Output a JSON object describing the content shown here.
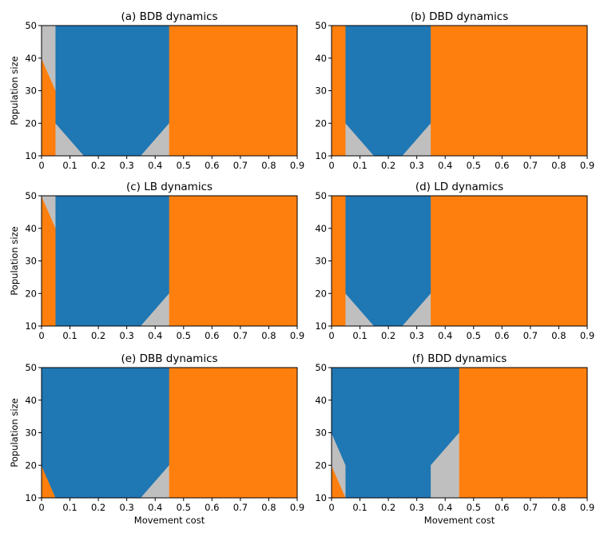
{
  "colors": {
    "blue": "#1f77b4",
    "orange": "#ff7f0e",
    "gray": "#bfbfbf"
  },
  "chart_data": [
    {
      "type": "heatmap",
      "title": "(a) BDB dynamics",
      "xlabel": "",
      "ylabel": "Population size",
      "xlim": [
        0,
        0.9
      ],
      "ylim": [
        10,
        50
      ],
      "xticks": [
        "0",
        "0.1",
        "0.2",
        "0.3",
        "0.4",
        "0.5",
        "0.6",
        "0.7",
        "0.8",
        "0.9"
      ],
      "yticks": [
        "10",
        "20",
        "30",
        "40",
        "50"
      ],
      "regions": [
        {
          "color": "orange",
          "points": [
            [
              0,
              10
            ],
            [
              0.05,
              10
            ],
            [
              0.05,
              30
            ],
            [
              0,
              40
            ]
          ]
        },
        {
          "color": "gray",
          "points": [
            [
              0,
              40
            ],
            [
              0.05,
              30
            ],
            [
              0.05,
              50
            ],
            [
              0,
              50
            ]
          ]
        },
        {
          "color": "gray",
          "points": [
            [
              0.05,
              10
            ],
            [
              0.15,
              10
            ],
            [
              0.05,
              20
            ]
          ]
        },
        {
          "color": "blue",
          "points": [
            [
              0.05,
              20
            ],
            [
              0.15,
              10
            ],
            [
              0.35,
              10
            ],
            [
              0.45,
              20
            ],
            [
              0.45,
              50
            ],
            [
              0.05,
              50
            ]
          ]
        },
        {
          "color": "gray",
          "points": [
            [
              0.35,
              10
            ],
            [
              0.45,
              10
            ],
            [
              0.45,
              20
            ]
          ]
        },
        {
          "color": "orange",
          "points": [
            [
              0.45,
              10
            ],
            [
              0.9,
              10
            ],
            [
              0.9,
              50
            ],
            [
              0.45,
              50
            ]
          ]
        }
      ]
    },
    {
      "type": "heatmap",
      "title": "(b) DBD dynamics",
      "xlabel": "",
      "ylabel": "",
      "xlim": [
        0,
        0.9
      ],
      "ylim": [
        10,
        50
      ],
      "xticks": [
        "0",
        "0.1",
        "0.2",
        "0.3",
        "0.4",
        "0.5",
        "0.6",
        "0.7",
        "0.8",
        "0.9"
      ],
      "yticks": [
        "10",
        "20",
        "30",
        "40",
        "50"
      ],
      "regions": [
        {
          "color": "orange",
          "points": [
            [
              0,
              10
            ],
            [
              0.05,
              10
            ],
            [
              0.05,
              50
            ],
            [
              0,
              50
            ]
          ]
        },
        {
          "color": "gray",
          "points": [
            [
              0.05,
              10
            ],
            [
              0.15,
              10
            ],
            [
              0.05,
              20
            ]
          ]
        },
        {
          "color": "blue",
          "points": [
            [
              0.05,
              20
            ],
            [
              0.15,
              10
            ],
            [
              0.25,
              10
            ],
            [
              0.35,
              20
            ],
            [
              0.35,
              50
            ],
            [
              0.05,
              50
            ]
          ]
        },
        {
          "color": "gray",
          "points": [
            [
              0.25,
              10
            ],
            [
              0.35,
              10
            ],
            [
              0.35,
              20
            ]
          ]
        },
        {
          "color": "orange",
          "points": [
            [
              0.35,
              10
            ],
            [
              0.9,
              10
            ],
            [
              0.9,
              50
            ],
            [
              0.35,
              50
            ]
          ]
        }
      ]
    },
    {
      "type": "heatmap",
      "title": "(c) LB dynamics",
      "xlabel": "",
      "ylabel": "Population size",
      "xlim": [
        0,
        0.9
      ],
      "ylim": [
        10,
        50
      ],
      "xticks": [
        "0",
        "0.1",
        "0.2",
        "0.3",
        "0.4",
        "0.5",
        "0.6",
        "0.7",
        "0.8",
        "0.9"
      ],
      "yticks": [
        "10",
        "20",
        "30",
        "40",
        "50"
      ],
      "regions": [
        {
          "color": "orange",
          "points": [
            [
              0,
              10
            ],
            [
              0.05,
              10
            ],
            [
              0.05,
              40
            ],
            [
              0,
              50
            ]
          ]
        },
        {
          "color": "gray",
          "points": [
            [
              0,
              50
            ],
            [
              0.05,
              40
            ],
            [
              0.05,
              50
            ]
          ]
        },
        {
          "color": "blue",
          "points": [
            [
              0.05,
              10
            ],
            [
              0.35,
              10
            ],
            [
              0.45,
              20
            ],
            [
              0.45,
              50
            ],
            [
              0.05,
              50
            ]
          ]
        },
        {
          "color": "gray",
          "points": [
            [
              0.35,
              10
            ],
            [
              0.45,
              10
            ],
            [
              0.45,
              20
            ]
          ]
        },
        {
          "color": "orange",
          "points": [
            [
              0.45,
              10
            ],
            [
              0.9,
              10
            ],
            [
              0.9,
              50
            ],
            [
              0.45,
              50
            ]
          ]
        }
      ]
    },
    {
      "type": "heatmap",
      "title": "(d) LD dynamics",
      "xlabel": "",
      "ylabel": "",
      "xlim": [
        0,
        0.9
      ],
      "ylim": [
        10,
        50
      ],
      "xticks": [
        "0",
        "0.1",
        "0.2",
        "0.3",
        "0.4",
        "0.5",
        "0.6",
        "0.7",
        "0.8",
        "0.9"
      ],
      "yticks": [
        "10",
        "20",
        "30",
        "40",
        "50"
      ],
      "regions": [
        {
          "color": "orange",
          "points": [
            [
              0,
              10
            ],
            [
              0.05,
              10
            ],
            [
              0.05,
              50
            ],
            [
              0,
              50
            ]
          ]
        },
        {
          "color": "gray",
          "points": [
            [
              0.05,
              10
            ],
            [
              0.15,
              10
            ],
            [
              0.05,
              20
            ]
          ]
        },
        {
          "color": "blue",
          "points": [
            [
              0.05,
              20
            ],
            [
              0.15,
              10
            ],
            [
              0.25,
              10
            ],
            [
              0.35,
              20
            ],
            [
              0.35,
              50
            ],
            [
              0.05,
              50
            ]
          ]
        },
        {
          "color": "gray",
          "points": [
            [
              0.25,
              10
            ],
            [
              0.35,
              10
            ],
            [
              0.35,
              20
            ]
          ]
        },
        {
          "color": "orange",
          "points": [
            [
              0.35,
              10
            ],
            [
              0.9,
              10
            ],
            [
              0.9,
              50
            ],
            [
              0.35,
              50
            ]
          ]
        }
      ]
    },
    {
      "type": "heatmap",
      "title": "(e) DBB dynamics",
      "xlabel": "Movement cost",
      "ylabel": "Population size",
      "xlim": [
        0,
        0.9
      ],
      "ylim": [
        10,
        50
      ],
      "xticks": [
        "0",
        "0.1",
        "0.2",
        "0.3",
        "0.4",
        "0.5",
        "0.6",
        "0.7",
        "0.8",
        "0.9"
      ],
      "yticks": [
        "10",
        "20",
        "30",
        "40",
        "50"
      ],
      "regions": [
        {
          "color": "orange",
          "points": [
            [
              0,
              10
            ],
            [
              0.05,
              10
            ],
            [
              0,
              20
            ]
          ]
        },
        {
          "color": "blue",
          "points": [
            [
              0,
              20
            ],
            [
              0.05,
              10
            ],
            [
              0.35,
              10
            ],
            [
              0.45,
              20
            ],
            [
              0.45,
              50
            ],
            [
              0,
              50
            ]
          ]
        },
        {
          "color": "gray",
          "points": [
            [
              0.35,
              10
            ],
            [
              0.45,
              10
            ],
            [
              0.45,
              20
            ]
          ]
        },
        {
          "color": "orange",
          "points": [
            [
              0.45,
              10
            ],
            [
              0.9,
              10
            ],
            [
              0.9,
              50
            ],
            [
              0.45,
              50
            ]
          ]
        }
      ]
    },
    {
      "type": "heatmap",
      "title": "(f) BDD dynamics",
      "xlabel": "Movement cost",
      "ylabel": "",
      "xlim": [
        0,
        0.9
      ],
      "ylim": [
        10,
        50
      ],
      "xticks": [
        "0",
        "0.1",
        "0.2",
        "0.3",
        "0.4",
        "0.5",
        "0.6",
        "0.7",
        "0.8",
        "0.9"
      ],
      "yticks": [
        "10",
        "20",
        "30",
        "40",
        "50"
      ],
      "regions": [
        {
          "color": "orange",
          "points": [
            [
              0,
              10
            ],
            [
              0.05,
              10
            ],
            [
              0,
              20
            ]
          ]
        },
        {
          "color": "gray",
          "points": [
            [
              0,
              20
            ],
            [
              0.05,
              10
            ],
            [
              0.05,
              20
            ],
            [
              0,
              30
            ]
          ]
        },
        {
          "color": "blue",
          "points": [
            [
              0,
              30
            ],
            [
              0.05,
              20
            ],
            [
              0.05,
              10
            ],
            [
              0.35,
              10
            ],
            [
              0.35,
              20
            ],
            [
              0.45,
              30
            ],
            [
              0.45,
              50
            ],
            [
              0,
              50
            ]
          ]
        },
        {
          "color": "gray",
          "points": [
            [
              0.35,
              10
            ],
            [
              0.45,
              10
            ],
            [
              0.45,
              30
            ],
            [
              0.35,
              20
            ]
          ]
        },
        {
          "color": "orange",
          "points": [
            [
              0.45,
              10
            ],
            [
              0.9,
              10
            ],
            [
              0.9,
              50
            ],
            [
              0.45,
              50
            ]
          ]
        }
      ]
    }
  ]
}
